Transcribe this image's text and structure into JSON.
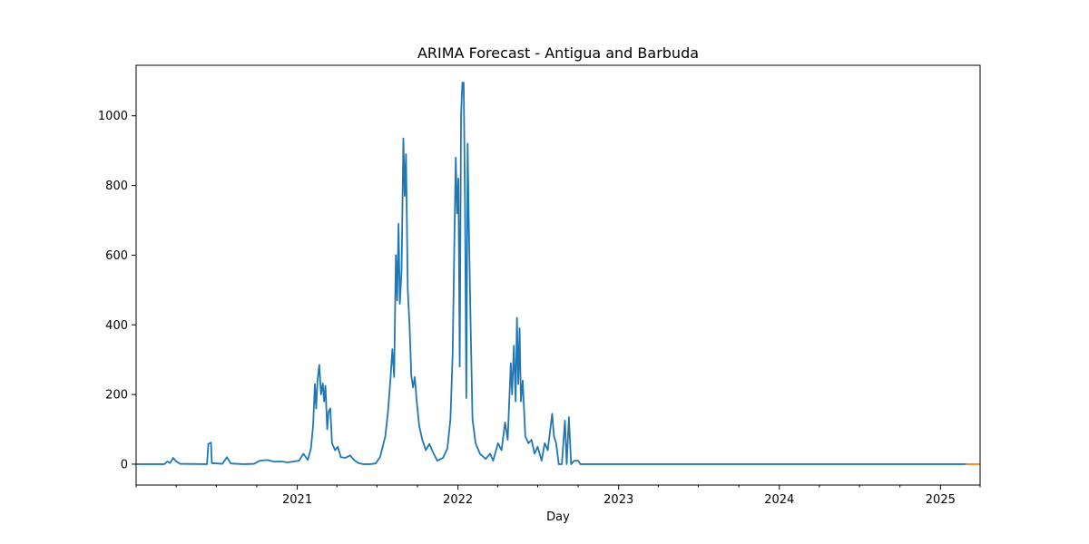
{
  "chart_data": {
    "type": "line",
    "title": "ARIMA Forecast - Antigua and Barbuda",
    "xlabel": "Day",
    "ylabel": "",
    "xlim": [
      "2020-01-01",
      "2025-04-01"
    ],
    "ylim": [
      -60,
      1145
    ],
    "x_ticks": [
      "2021",
      "2022",
      "2023",
      "2024",
      "2025"
    ],
    "y_ticks": [
      0,
      200,
      400,
      600,
      800,
      1000
    ],
    "grid": false,
    "series": [
      {
        "color": "#1f77b4",
        "points": [
          [
            "2020-01-01",
            0
          ],
          [
            "2020-03-05",
            0
          ],
          [
            "2020-03-12",
            8
          ],
          [
            "2020-03-18",
            3
          ],
          [
            "2020-03-25",
            18
          ],
          [
            "2020-04-01",
            8
          ],
          [
            "2020-04-10",
            1
          ],
          [
            "2020-06-10",
            0
          ],
          [
            "2020-06-13",
            58
          ],
          [
            "2020-06-19",
            62
          ],
          [
            "2020-06-21",
            3
          ],
          [
            "2020-07-15",
            1
          ],
          [
            "2020-07-25",
            20
          ],
          [
            "2020-08-03",
            2
          ],
          [
            "2020-09-01",
            0
          ],
          [
            "2020-09-25",
            1
          ],
          [
            "2020-10-08",
            10
          ],
          [
            "2020-10-25",
            12
          ],
          [
            "2020-11-10",
            7
          ],
          [
            "2020-11-25",
            8
          ],
          [
            "2020-12-10",
            5
          ],
          [
            "2020-12-25",
            8
          ],
          [
            "2021-01-05",
            10
          ],
          [
            "2021-01-15",
            30
          ],
          [
            "2021-01-25",
            12
          ],
          [
            "2021-02-01",
            45
          ],
          [
            "2021-02-06",
            110
          ],
          [
            "2021-02-10",
            230
          ],
          [
            "2021-02-13",
            160
          ],
          [
            "2021-02-16",
            240
          ],
          [
            "2021-02-20",
            285
          ],
          [
            "2021-02-24",
            200
          ],
          [
            "2021-02-28",
            232
          ],
          [
            "2021-03-03",
            180
          ],
          [
            "2021-03-06",
            225
          ],
          [
            "2021-03-10",
            100
          ],
          [
            "2021-03-13",
            150
          ],
          [
            "2021-03-17",
            160
          ],
          [
            "2021-03-21",
            60
          ],
          [
            "2021-03-28",
            40
          ],
          [
            "2021-04-03",
            50
          ],
          [
            "2021-04-10",
            20
          ],
          [
            "2021-04-20",
            18
          ],
          [
            "2021-05-01",
            25
          ],
          [
            "2021-05-10",
            12
          ],
          [
            "2021-05-20",
            3
          ],
          [
            "2021-06-01",
            0
          ],
          [
            "2021-06-15",
            0
          ],
          [
            "2021-06-28",
            2
          ],
          [
            "2021-07-08",
            20
          ],
          [
            "2021-07-15",
            55
          ],
          [
            "2021-07-20",
            80
          ],
          [
            "2021-07-26",
            150
          ],
          [
            "2021-08-01",
            250
          ],
          [
            "2021-08-05",
            330
          ],
          [
            "2021-08-09",
            250
          ],
          [
            "2021-08-13",
            600
          ],
          [
            "2021-08-16",
            470
          ],
          [
            "2021-08-19",
            690
          ],
          [
            "2021-08-22",
            460
          ],
          [
            "2021-08-26",
            560
          ],
          [
            "2021-08-30",
            935
          ],
          [
            "2021-09-02",
            770
          ],
          [
            "2021-09-05",
            890
          ],
          [
            "2021-09-09",
            500
          ],
          [
            "2021-09-13",
            400
          ],
          [
            "2021-09-17",
            255
          ],
          [
            "2021-09-21",
            220
          ],
          [
            "2021-09-25",
            250
          ],
          [
            "2021-09-29",
            185
          ],
          [
            "2021-10-05",
            110
          ],
          [
            "2021-10-12",
            70
          ],
          [
            "2021-10-20",
            40
          ],
          [
            "2021-10-28",
            58
          ],
          [
            "2021-11-05",
            35
          ],
          [
            "2021-11-15",
            10
          ],
          [
            "2021-11-28",
            18
          ],
          [
            "2021-12-08",
            45
          ],
          [
            "2021-12-15",
            130
          ],
          [
            "2021-12-20",
            320
          ],
          [
            "2021-12-24",
            650
          ],
          [
            "2021-12-27",
            880
          ],
          [
            "2021-12-30",
            720
          ],
          [
            "2022-01-02",
            820
          ],
          [
            "2022-01-05",
            280
          ],
          [
            "2022-01-08",
            1000
          ],
          [
            "2022-01-11",
            1095
          ],
          [
            "2022-01-14",
            1095
          ],
          [
            "2022-01-17",
            750
          ],
          [
            "2022-01-20",
            190
          ],
          [
            "2022-01-23",
            920
          ],
          [
            "2022-01-25",
            740
          ],
          [
            "2022-01-29",
            450
          ],
          [
            "2022-02-03",
            130
          ],
          [
            "2022-02-10",
            60
          ],
          [
            "2022-02-20",
            30
          ],
          [
            "2022-03-05",
            15
          ],
          [
            "2022-03-15",
            30
          ],
          [
            "2022-03-22",
            10
          ],
          [
            "2022-04-02",
            60
          ],
          [
            "2022-04-10",
            40
          ],
          [
            "2022-04-18",
            120
          ],
          [
            "2022-04-24",
            70
          ],
          [
            "2022-05-01",
            290
          ],
          [
            "2022-05-04",
            200
          ],
          [
            "2022-05-08",
            340
          ],
          [
            "2022-05-12",
            180
          ],
          [
            "2022-05-15",
            420
          ],
          [
            "2022-05-18",
            230
          ],
          [
            "2022-05-21",
            390
          ],
          [
            "2022-05-24",
            180
          ],
          [
            "2022-05-28",
            240
          ],
          [
            "2022-06-03",
            80
          ],
          [
            "2022-06-10",
            60
          ],
          [
            "2022-06-17",
            70
          ],
          [
            "2022-06-24",
            30
          ],
          [
            "2022-07-01",
            50
          ],
          [
            "2022-07-10",
            10
          ],
          [
            "2022-07-17",
            60
          ],
          [
            "2022-07-24",
            40
          ],
          [
            "2022-08-03",
            145
          ],
          [
            "2022-08-07",
            80
          ],
          [
            "2022-08-12",
            60
          ],
          [
            "2022-08-18",
            0
          ],
          [
            "2022-08-25",
            0
          ],
          [
            "2022-09-01",
            125
          ],
          [
            "2022-09-05",
            0
          ],
          [
            "2022-09-10",
            135
          ],
          [
            "2022-09-15",
            0
          ],
          [
            "2022-09-22",
            10
          ],
          [
            "2022-10-01",
            10
          ],
          [
            "2022-10-06",
            0
          ],
          [
            "2025-02-28",
            0
          ]
        ]
      },
      {
        "color": "#ff7f0e",
        "points": [
          [
            "2025-02-28",
            0
          ],
          [
            "2025-04-01",
            0
          ]
        ]
      }
    ]
  }
}
